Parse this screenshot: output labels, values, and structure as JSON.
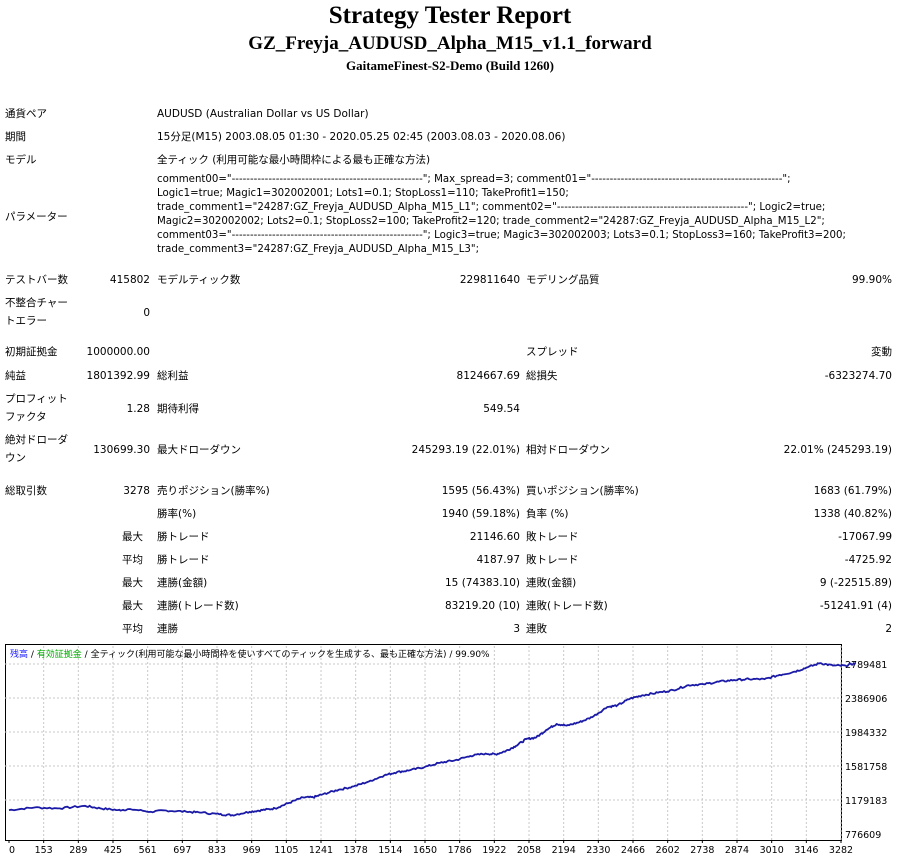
{
  "report": {
    "title": "Strategy Tester Report",
    "ea_name": "GZ_Freyja_AUDUSD_Alpha_M15_v1.1_forward",
    "server": "GaitameFinest-S2-Demo (Build 1260)"
  },
  "settings": {
    "symbol_label": "通貨ペア",
    "symbol_value": "AUDUSD (Australian Dollar vs US Dollar)",
    "period_label": "期間",
    "period_value": "15分足(M15) 2003.08.05 01:30 - 2020.05.25 02:45 (2003.08.03 - 2020.08.06)",
    "model_label": "モデル",
    "model_value": "全ティック (利用可能な最小時間枠による最も正確な方法)",
    "params_label": "パラメーター",
    "params_lines": [
      "comment00=\"----------------------------------------------------\"; Max_spread=3; comment01=\"----------------------------------------------------\";",
      "Logic1=true; Magic1=302002001; Lots1=0.1; StopLoss1=110; TakeProfit1=150;",
      "trade_comment1=\"24287:GZ_Freyja_AUDUSD_Alpha_M15_L1\"; comment02=\"----------------------------------------------------\"; Logic2=true;",
      "Magic2=302002002; Lots2=0.1; StopLoss2=100; TakeProfit2=120; trade_comment2=\"24287:GZ_Freyja_AUDUSD_Alpha_M15_L2\";",
      "comment03=\"----------------------------------------------------\"; Logic3=true; Magic3=302002003; Lots3=0.1; StopLoss3=160; TakeProfit3=200;",
      "trade_comment3=\"24287:GZ_Freyja_AUDUSD_Alpha_M15_L3\";"
    ]
  },
  "stats": {
    "bars_label": "テストバー数",
    "bars_value": "415802",
    "ticks_label": "モデルティック数",
    "ticks_value": "229811640",
    "quality_label": "モデリング品質",
    "quality_value": "99.90%",
    "mismatch_label_1": "不整合チャー",
    "mismatch_label_2": "トエラー",
    "mismatch_value": "0",
    "deposit_label": "初期証拠金",
    "deposit_value": "1000000.00",
    "spread_label": "スプレッド",
    "spread_value": "変動",
    "net_label": "純益",
    "net_value": "1801392.99",
    "gross_profit_label": "総利益",
    "gross_profit_value": "8124667.69",
    "gross_loss_label": "総損失",
    "gross_loss_value": "-6323274.70",
    "pf_label_1": "プロフィット",
    "pf_label_2": "ファクタ",
    "pf_value": "1.28",
    "expected_label": "期待利得",
    "expected_value": "549.54",
    "abs_dd_label_1": "絶対ドローダ",
    "abs_dd_label_2": "ウン",
    "abs_dd_value": "130699.30",
    "max_dd_label": "最大ドローダウン",
    "max_dd_value": "245293.19 (22.01%)",
    "rel_dd_label": "相対ドローダウン",
    "rel_dd_value": "22.01% (245293.19)",
    "trades_label": "総取引数",
    "trades_value": "3278",
    "short_label": "売りポジション(勝率%)",
    "short_value": "1595 (56.43%)",
    "long_label": "買いポジション(勝率%)",
    "long_value": "1683 (61.79%)",
    "win_pct_label": "勝率(%)",
    "win_pct_value": "1940 (59.18%)",
    "loss_pct_label": "負率 (%)",
    "loss_pct_value": "1338 (40.82%)",
    "max_label": "最大",
    "avg_label": "平均",
    "largest_win_label": "勝トレード",
    "largest_win_value": "21146.60",
    "largest_loss_label": "敗トレード",
    "largest_loss_value": "-17067.99",
    "avg_win_label": "勝トレード",
    "avg_win_value": "4187.97",
    "avg_loss_label": "敗トレード",
    "avg_loss_value": "-4725.92",
    "max_consec_wins_label": "連勝(金額)",
    "max_consec_wins_value": "15 (74383.10)",
    "max_consec_losses_label": "連敗(金額)",
    "max_consec_losses_value": "9 (-22515.89)",
    "max_consec_profit_label": "連勝(トレード数)",
    "max_consec_profit_value": "83219.20 (10)",
    "max_consec_loss_label": "連敗(トレード数)",
    "max_consec_loss_value": "-51241.91 (4)",
    "avg_consec_wins_label": "連勝",
    "avg_consec_wins_value": "3",
    "avg_consec_losses_label": "連敗",
    "avg_consec_losses_value": "2"
  },
  "chart_data": {
    "type": "line",
    "legend": {
      "balance": "残高",
      "sep1": " / ",
      "margin": "有効証拠金",
      "sep2": " / ",
      "model": "全ティック(利用可能な最小時間枠を使いすべてのティックを生成する、最も正確な方法)",
      "sep3": " / ",
      "quality": "99.90%"
    },
    "x_ticks": [
      "0",
      "153",
      "289",
      "425",
      "561",
      "697",
      "833",
      "969",
      "1105",
      "1241",
      "1378",
      "1514",
      "1650",
      "1786",
      "1922",
      "2058",
      "2194",
      "2330",
      "2466",
      "2602",
      "2738",
      "2874",
      "3010",
      "3146",
      "3282"
    ],
    "y_ticks": [
      "2789481",
      "2386906",
      "1984332",
      "1581758",
      "1179183",
      "776609"
    ],
    "xlim": [
      0,
      3360
    ],
    "ylim": [
      776609,
      2950000
    ],
    "series": [
      {
        "color": "#1a1aa6",
        "x": [
          0,
          100,
          200,
          300,
          360,
          430,
          480,
          560,
          620,
          700,
          760,
          830,
          880,
          950,
          1000,
          1050,
          1100,
          1160,
          1200,
          1240,
          1300,
          1360,
          1420,
          1480,
          1530,
          1580,
          1640,
          1700,
          1760,
          1820,
          1880,
          1920,
          1960,
          2000,
          2040,
          2080,
          2120,
          2160,
          2200,
          2250,
          2300,
          2360,
          2400,
          2450,
          2500,
          2560,
          2620,
          2680,
          2740,
          2800,
          2860,
          2920,
          2980,
          3040,
          3100,
          3150,
          3200,
          3250,
          3300,
          3340
        ],
        "y": [
          1060000,
          1090000,
          1080000,
          1110000,
          1080000,
          1060000,
          1070000,
          1040000,
          1055000,
          1040000,
          1030000,
          1010000,
          1000000,
          1040000,
          1060000,
          1080000,
          1140000,
          1210000,
          1210000,
          1250000,
          1300000,
          1340000,
          1400000,
          1470000,
          1510000,
          1530000,
          1570000,
          1620000,
          1650000,
          1700000,
          1730000,
          1720000,
          1760000,
          1820000,
          1900000,
          1920000,
          2010000,
          2080000,
          2060000,
          2100000,
          2160000,
          2280000,
          2300000,
          2380000,
          2420000,
          2450000,
          2480000,
          2540000,
          2550000,
          2580000,
          2600000,
          2610000,
          2610000,
          2660000,
          2700000,
          2750000,
          2800000,
          2770000,
          2770000,
          2800000
        ]
      }
    ]
  }
}
